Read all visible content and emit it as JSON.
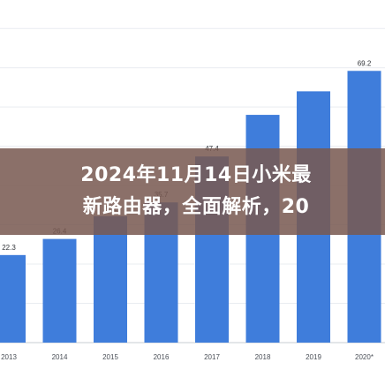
{
  "article": {
    "title": "2024年11月14日小米最\n新路由器，全面解析，20"
  },
  "chart_data": {
    "type": "bar",
    "categories": [
      "2013",
      "2014",
      "2015",
      "2016",
      "2017",
      "2018",
      "2019",
      "2020*"
    ],
    "values": [
      22.3,
      26.4,
      32.2,
      35.7,
      47.4,
      58.0,
      64.0,
      69.2
    ],
    "labels": [
      "22.3",
      "26.4",
      "32.2",
      "35.7",
      "47.4",
      "",
      "",
      "69.2"
    ],
    "bar_color": "#3f7ddb",
    "ylim": [
      0,
      85
    ],
    "grid": true,
    "title": "",
    "xlabel": "",
    "ylabel": ""
  }
}
